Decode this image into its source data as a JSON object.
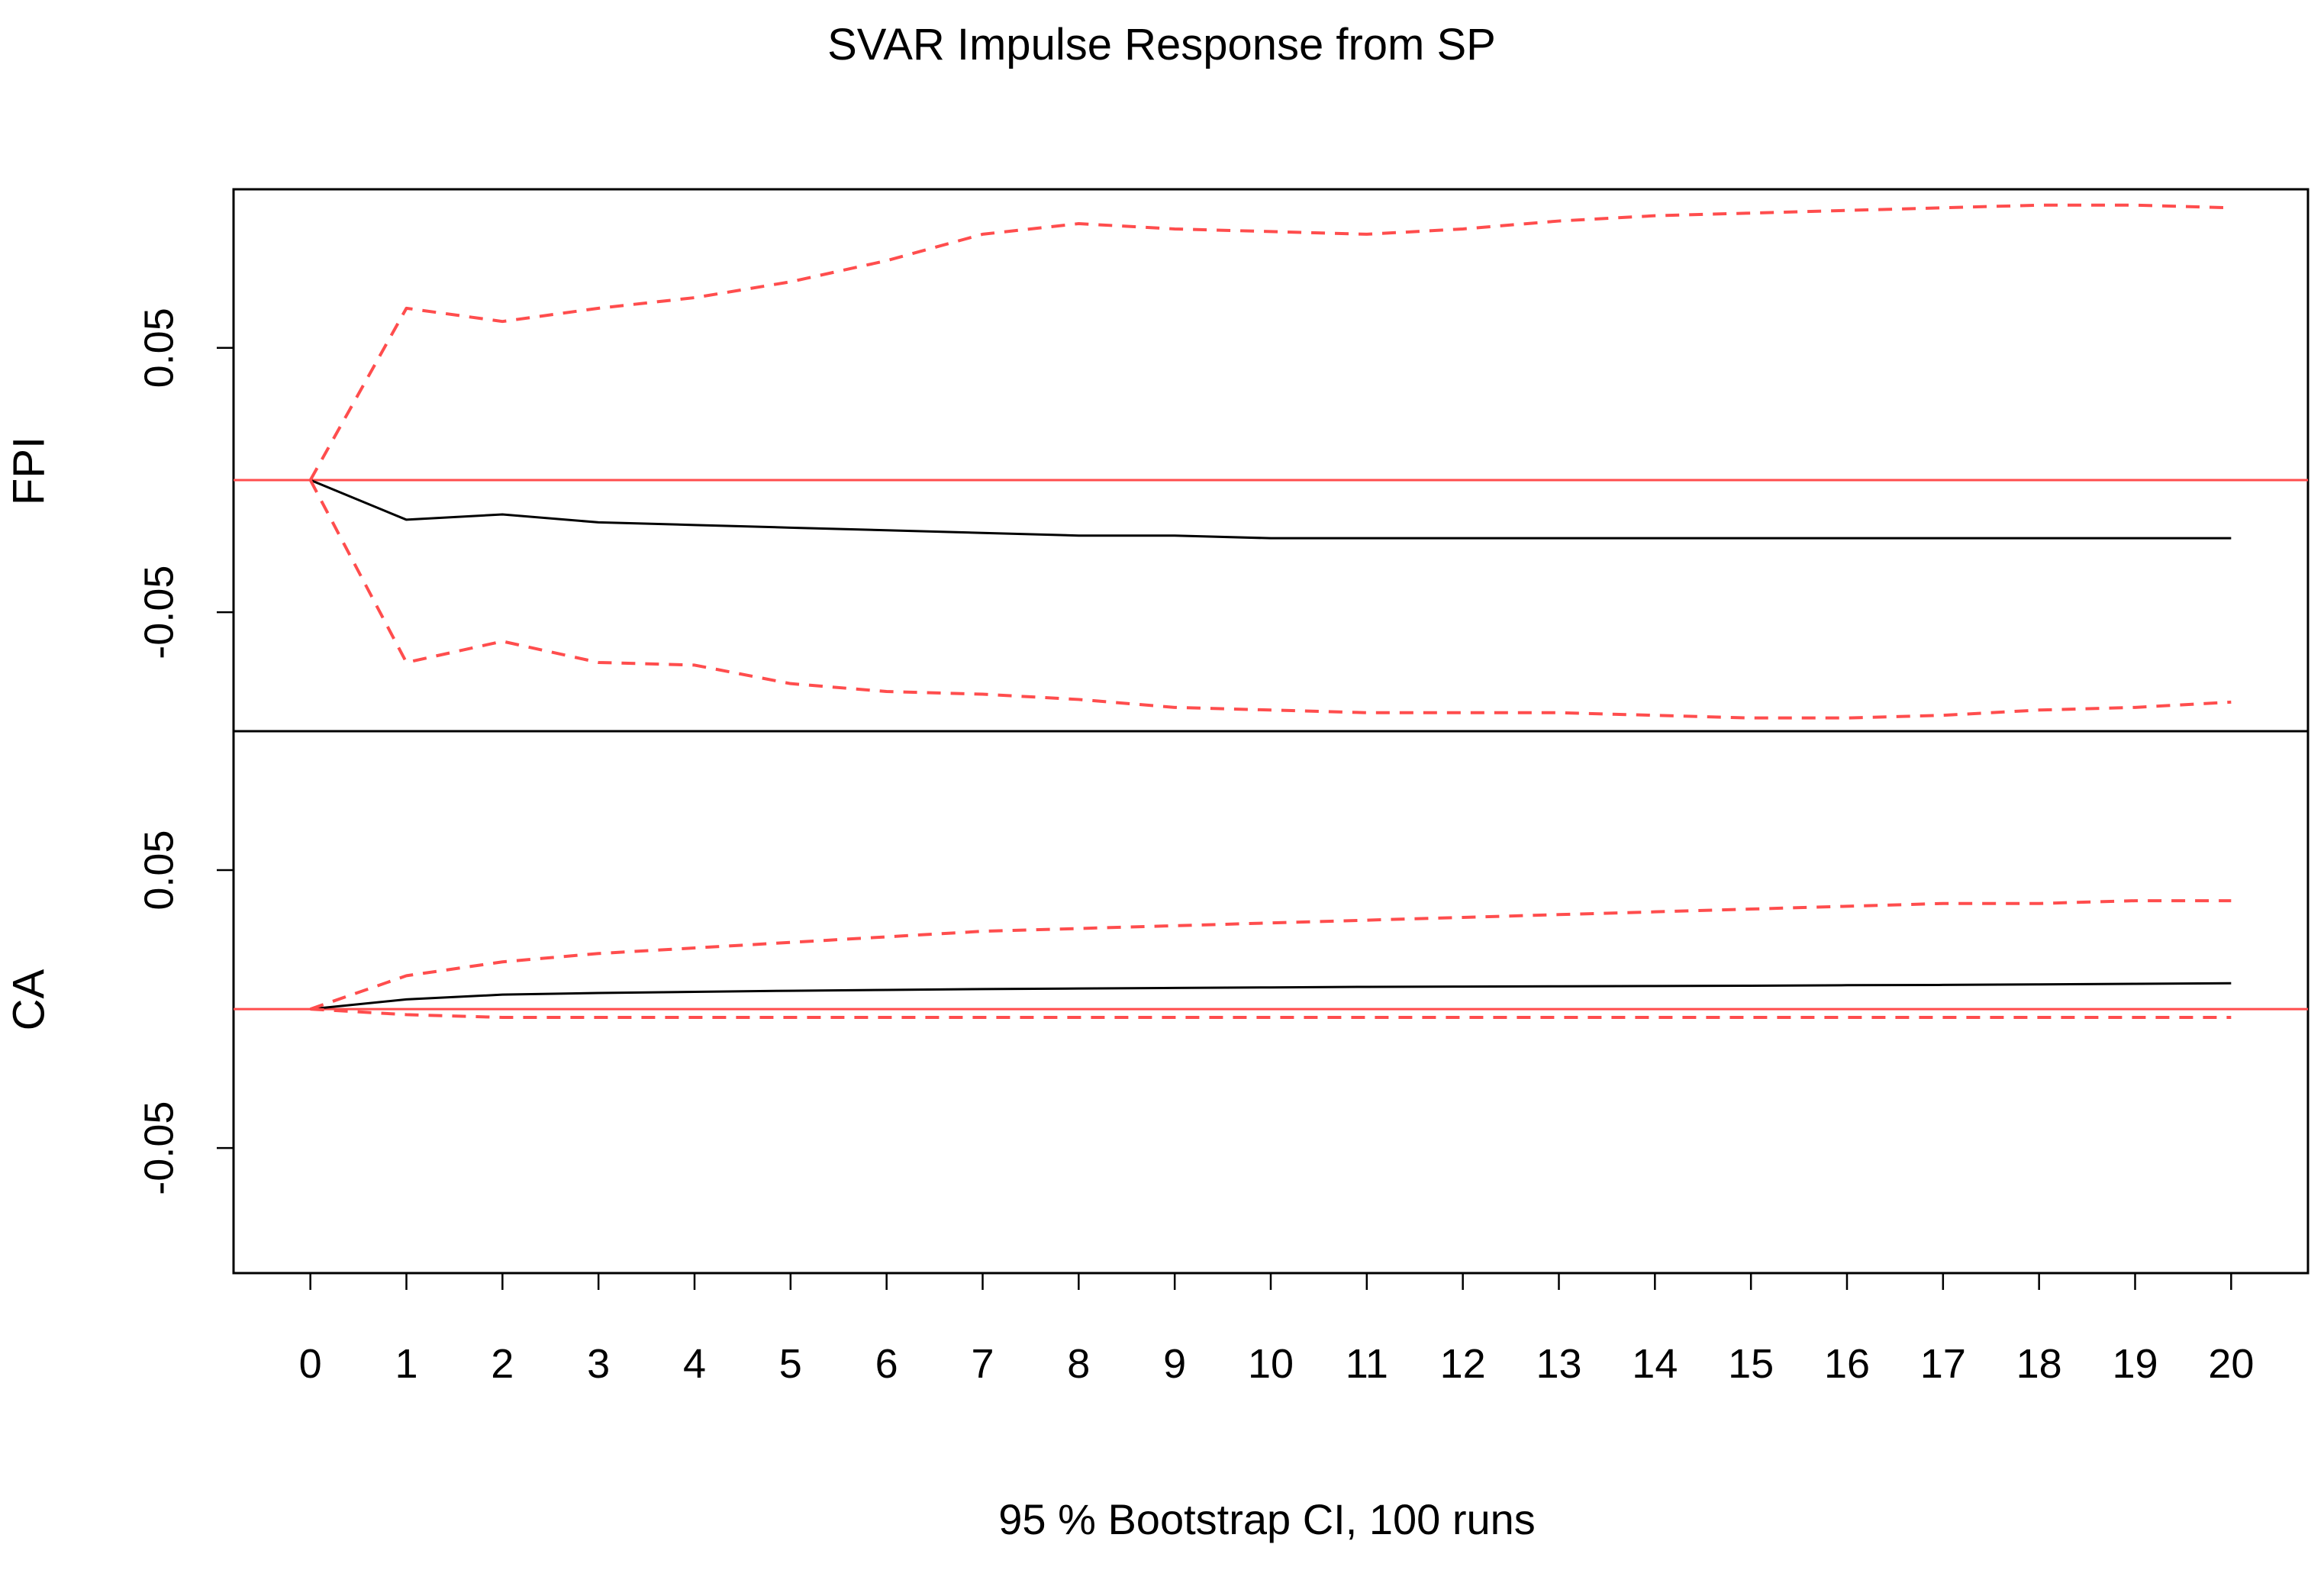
{
  "chart_data": {
    "type": "line",
    "title": "SVAR Impulse Response from SP",
    "xlabel": "95 % Bootstrap CI,  100 runs",
    "x": [
      0,
      1,
      2,
      3,
      4,
      5,
      6,
      7,
      8,
      9,
      10,
      11,
      12,
      13,
      14,
      15,
      16,
      17,
      18,
      19,
      20
    ],
    "xlim": [
      -0.8,
      20.8
    ],
    "grid": false,
    "legend": "none",
    "colors": {
      "response": "#000000",
      "ci": "#ff4d4d",
      "zero": "#ff4d4d",
      "frame": "#000000"
    },
    "panels": [
      {
        "ylabel": "FPI",
        "ylim": [
          -0.095,
          0.11
        ],
        "yticks": [
          -0.05,
          0.05
        ],
        "ytick_labels": [
          "-0.05",
          "0.05"
        ],
        "series": [
          {
            "values": [
              0,
              -0.015,
              -0.013,
              -0.016,
              -0.017,
              -0.018,
              -0.019,
              -0.02,
              -0.021,
              -0.021,
              -0.022,
              -0.022,
              -0.022,
              -0.022,
              -0.022,
              -0.022,
              -0.022,
              -0.022,
              -0.022,
              -0.022,
              -0.022
            ]
          },
          {
            "values": [
              0,
              0.065,
              0.06,
              0.065,
              0.069,
              0.075,
              0.083,
              0.093,
              0.097,
              0.095,
              0.094,
              0.093,
              0.095,
              0.098,
              0.1,
              0.101,
              0.102,
              0.103,
              0.104,
              0.104,
              0.103
            ]
          },
          {
            "values": [
              0,
              -0.069,
              -0.061,
              -0.069,
              -0.07,
              -0.077,
              -0.08,
              -0.081,
              -0.083,
              -0.086,
              -0.087,
              -0.088,
              -0.088,
              -0.088,
              -0.089,
              -0.09,
              -0.09,
              -0.089,
              -0.087,
              -0.086,
              -0.084
            ]
          }
        ]
      },
      {
        "ylabel": "CA",
        "ylim": [
          -0.095,
          0.1
        ],
        "yticks": [
          -0.05,
          0.05
        ],
        "ytick_labels": [
          "-0.05",
          "0.05"
        ],
        "series": [
          {
            "values": [
              0,
              0.0035,
              0.0052,
              0.0058,
              0.0062,
              0.0066,
              0.0069,
              0.0072,
              0.0074,
              0.0076,
              0.0078,
              0.008,
              0.0081,
              0.0082,
              0.0083,
              0.0084,
              0.0086,
              0.0087,
              0.0089,
              0.0091,
              0.0093
            ]
          },
          {
            "values": [
              0,
              0.012,
              0.017,
              0.02,
              0.022,
              0.024,
              0.026,
              0.028,
              0.029,
              0.03,
              0.031,
              0.032,
              0.033,
              0.034,
              0.035,
              0.036,
              0.037,
              0.038,
              0.038,
              0.039,
              0.039
            ]
          },
          {
            "values": [
              0,
              -0.002,
              -0.003,
              -0.003,
              -0.003,
              -0.003,
              -0.003,
              -0.003,
              -0.003,
              -0.003,
              -0.003,
              -0.003,
              -0.003,
              -0.003,
              -0.003,
              -0.003,
              -0.003,
              -0.003,
              -0.003,
              -0.003,
              -0.003
            ]
          }
        ]
      }
    ]
  }
}
